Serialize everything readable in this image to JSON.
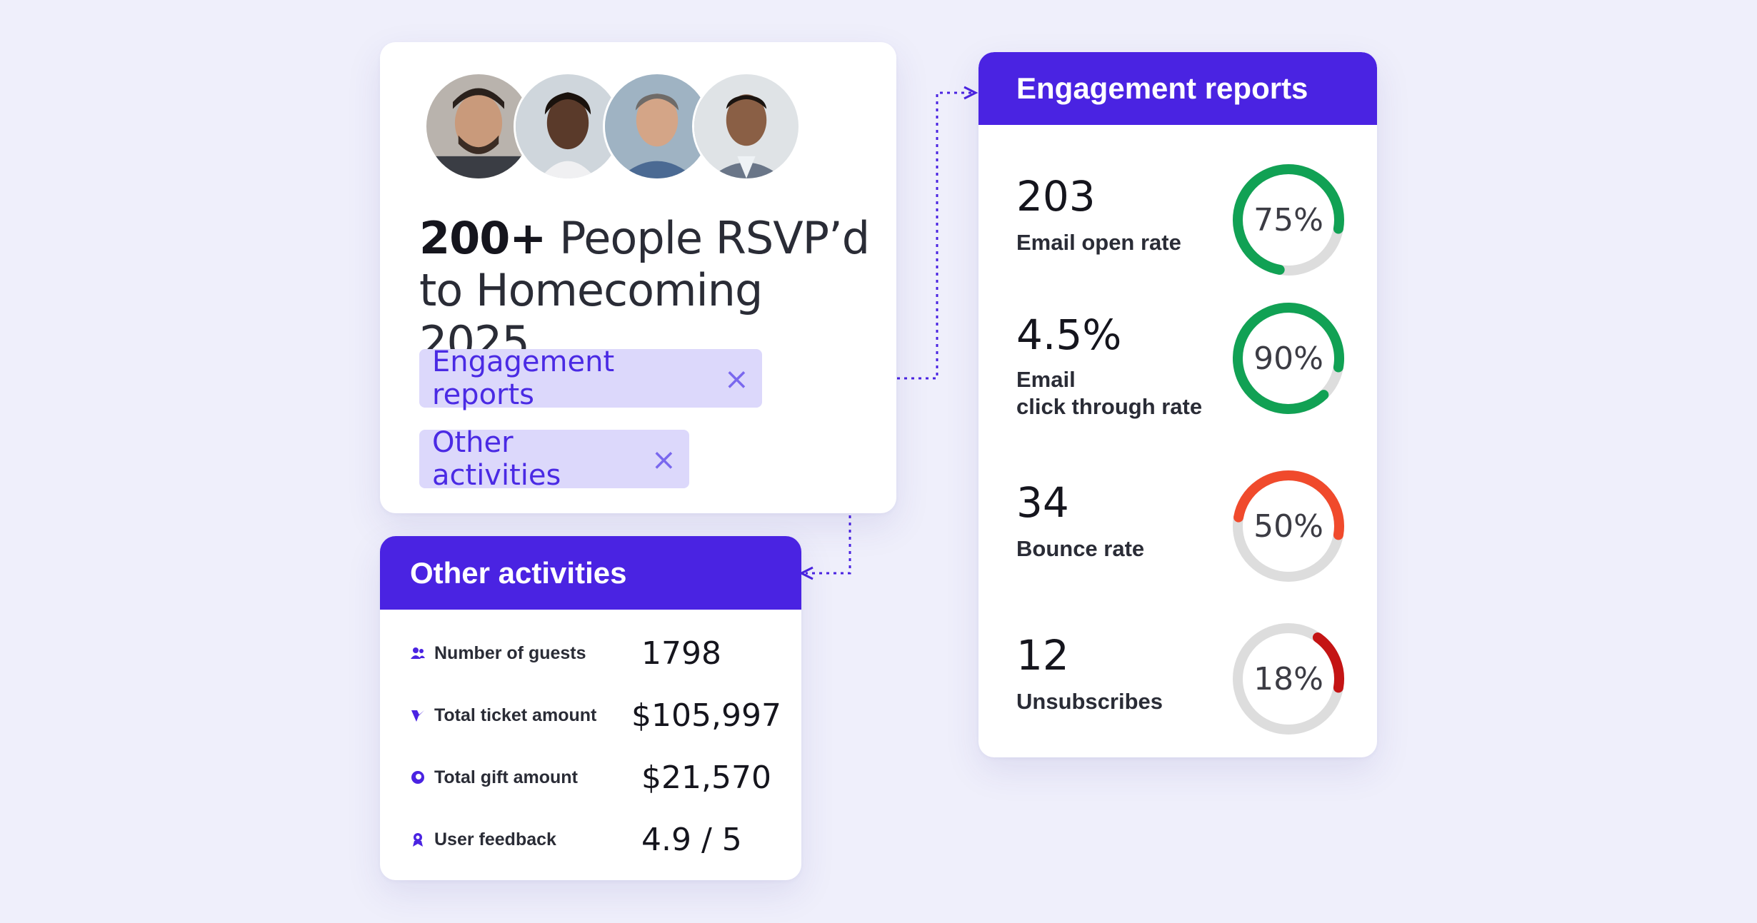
{
  "rsvp": {
    "headline_strong": "200+",
    "headline_rest": " People RSVP’d to Homecoming 2025",
    "chips": [
      {
        "label": "Engagement reports",
        "close": "×"
      },
      {
        "label": "Other activities",
        "close": "×"
      }
    ]
  },
  "other_activities": {
    "title": "Other activities",
    "rows": [
      {
        "label": "Number of guests",
        "value": "1798",
        "icon": "guests-icon"
      },
      {
        "label": "Total ticket amount",
        "value": "$105,997",
        "icon": "ticket-icon"
      },
      {
        "label": "Total gift amount",
        "value": "$21,570",
        "icon": "gift-icon"
      },
      {
        "label": "User feedback",
        "value": "4.9 / 5",
        "icon": "feedback-icon"
      }
    ]
  },
  "engagement": {
    "title": "Engagement reports",
    "metrics": [
      {
        "value": "203",
        "label_line1": "Email open rate",
        "label_line2": "",
        "percent_text": "75%",
        "percent": 75,
        "color": "#11a154"
      },
      {
        "value": "4.5%",
        "label_line1": "Email",
        "label_line2": "click through rate",
        "percent_text": "90%",
        "percent": 90,
        "color": "#11a154"
      },
      {
        "value": "34",
        "label_line1": "Bounce rate",
        "label_line2": "",
        "percent_text": "50%",
        "percent": 50,
        "color": "#f04a2c"
      },
      {
        "value": "12",
        "label_line1": "Unsubscribes",
        "label_line2": "",
        "percent_text": "18%",
        "percent": 18,
        "color": "#c41414"
      }
    ]
  },
  "colors": {
    "accent": "#4a23e2",
    "chip_bg": "#dcd8fb",
    "page_bg": "#efeffb",
    "gauge_track": "#dddddd"
  }
}
